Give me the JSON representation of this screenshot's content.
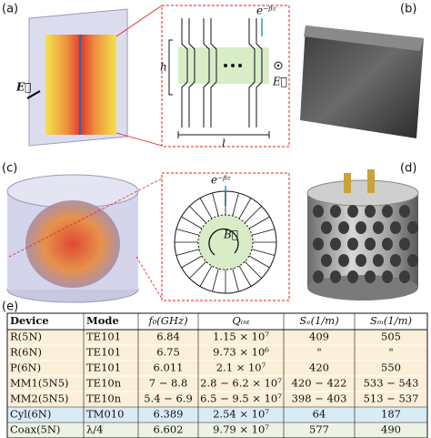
{
  "panels": {
    "a": "(a)",
    "b": "(b)",
    "c": "(c)",
    "d": "(d)",
    "e": "(e)"
  },
  "schematic_a": {
    "sim_field": "E⃗",
    "wave": "e⁻ᵝᶻ",
    "height": "h",
    "length": "l",
    "field": "E⃗"
  },
  "schematic_c": {
    "wave": "e⁻ᵝᶻ",
    "field": "B⃗"
  },
  "table": {
    "header": [
      "Device",
      "Mode",
      "f₀(GHz)",
      "Qᵢₙₜ",
      "Sₑ(1/m)",
      "Sₘ(1/m)"
    ],
    "rows": [
      [
        "R(5N)",
        "TE101",
        "6.84",
        "1.15 × 10⁷",
        "409",
        "505"
      ],
      [
        "R(6N)",
        "TE101",
        "6.75",
        "9.73 × 10⁶",
        "\"",
        "\""
      ],
      [
        "P(6N)",
        "TE101",
        "6.011",
        "2.1 × 10⁷",
        "420",
        "550"
      ],
      [
        "MM1(5N5)",
        "TE10n",
        "7 − 8.8",
        "2.8 − 6.2 × 10⁷",
        "420 − 422",
        "533 − 543"
      ],
      [
        "MM2(5N5)",
        "TE10n",
        "5.4 − 6.9",
        "6.5 − 9.5 × 10⁷",
        "398 − 403",
        "513 − 537"
      ],
      [
        "Cyl(6N)",
        "TM010",
        "6.389",
        "2.54 × 10⁷",
        "64",
        "187"
      ],
      [
        "Coax(5N)",
        "λ/4",
        "6.602",
        "9.79 × 10⁷",
        "577",
        "490"
      ]
    ]
  }
}
